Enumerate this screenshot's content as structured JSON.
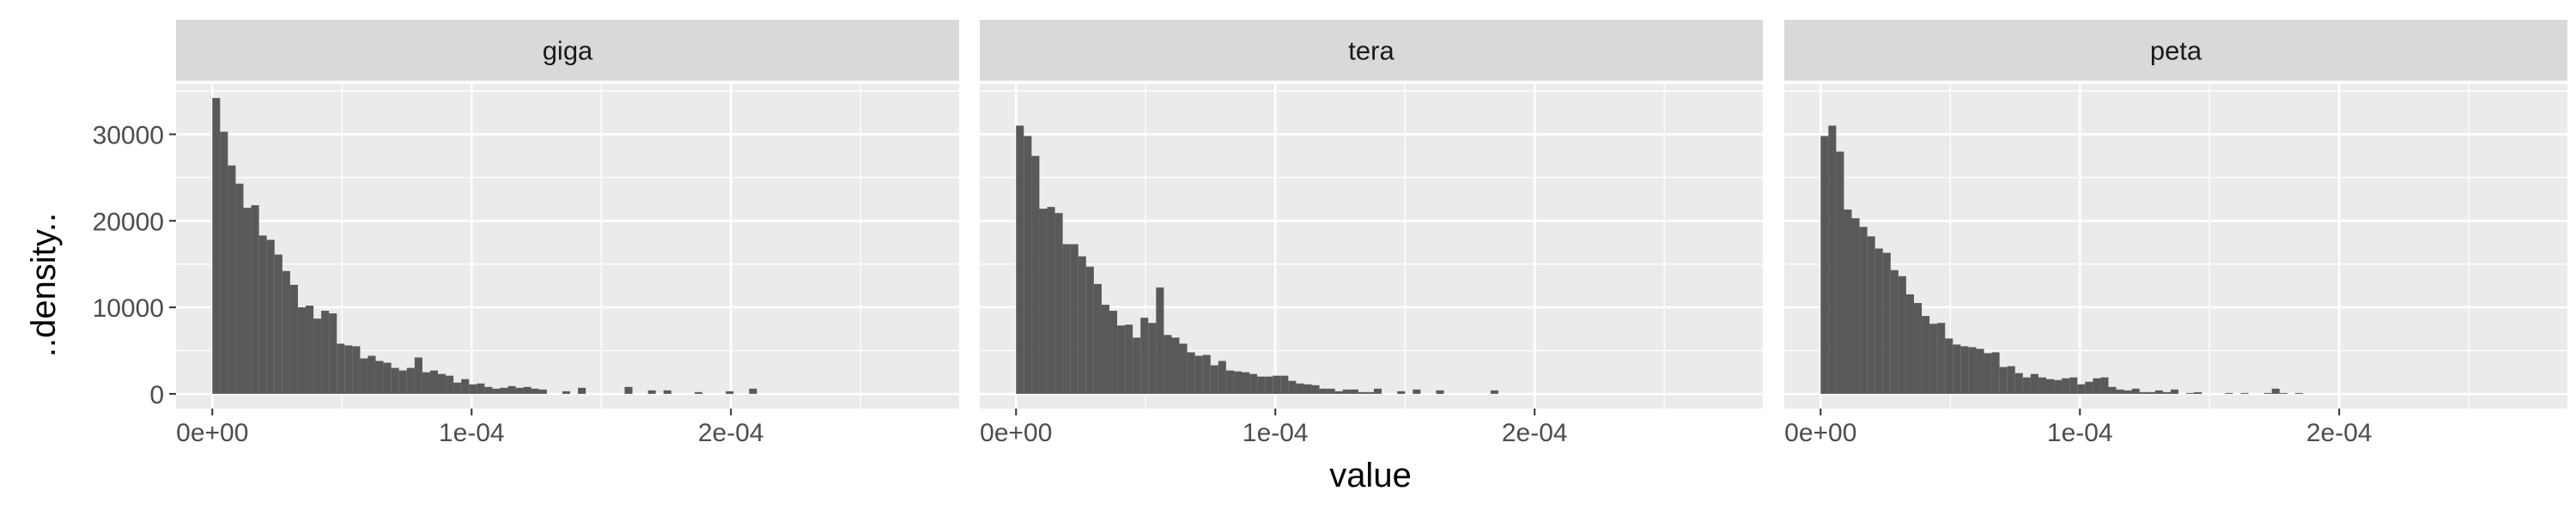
{
  "chart_data": {
    "type": "bar",
    "subtype": "faceted-histogram",
    "xlabel": "value",
    "ylabel": "..density..",
    "xlim": [
      -1.4e-05,
      0.000288
    ],
    "ylim": [
      -1700,
      35800
    ],
    "x_ticks": [
      0,
      0.0001,
      0.0002
    ],
    "x_tick_labels": [
      "0e+00",
      "1e-04",
      "2e-04"
    ],
    "y_ticks": [
      0,
      10000,
      20000,
      30000
    ],
    "y_tick_labels": [
      "0",
      "10000",
      "20000",
      "30000"
    ],
    "bin_width": 3e-06,
    "bin_start": 0,
    "grid": true,
    "bar_color": "#595959",
    "panel_background": "#ebebeb",
    "strip_background": "#d9d9d9",
    "grid_color": "#ffffff",
    "facets": [
      {
        "label": "giga",
        "values": [
          34200,
          30300,
          26400,
          24300,
          21500,
          21800,
          18300,
          17800,
          16100,
          14200,
          12600,
          10000,
          10200,
          8700,
          9600,
          9300,
          5800,
          5600,
          5500,
          4100,
          4400,
          3800,
          3600,
          3000,
          2700,
          3000,
          4200,
          2500,
          2700,
          2300,
          2100,
          1300,
          1700,
          1100,
          1200,
          800,
          600,
          700,
          900,
          700,
          800,
          600,
          500,
          0,
          0,
          300,
          0,
          700,
          0,
          0,
          0,
          0,
          0,
          800,
          0,
          0,
          400,
          0,
          400,
          0,
          0,
          0,
          200,
          0,
          0,
          0,
          300,
          0,
          0,
          600,
          0,
          0,
          0,
          0,
          0,
          0,
          0,
          0,
          0,
          0,
          0,
          0,
          0,
          0,
          0,
          0,
          0,
          0,
          0,
          0,
          0,
          0,
          0
        ]
      },
      {
        "label": "tera",
        "values": [
          31000,
          29800,
          27500,
          21400,
          21600,
          20900,
          17300,
          17300,
          15900,
          14700,
          12700,
          10300,
          9600,
          7900,
          8000,
          6500,
          8800,
          8200,
          12300,
          6800,
          6500,
          5800,
          4800,
          4400,
          4500,
          3300,
          3800,
          2700,
          2600,
          2500,
          2300,
          2000,
          2000,
          2100,
          2100,
          1500,
          1200,
          1100,
          1000,
          600,
          600,
          300,
          500,
          500,
          200,
          200,
          600,
          0,
          0,
          300,
          0,
          500,
          0,
          0,
          400,
          0,
          0,
          0,
          0,
          0,
          0,
          400,
          0,
          0,
          0,
          0,
          0,
          0,
          0,
          0,
          0,
          0,
          0,
          0,
          0,
          0,
          0,
          0,
          0,
          0,
          0,
          0,
          0,
          0,
          0,
          0,
          0,
          0,
          0,
          0,
          0,
          0,
          0
        ]
      },
      {
        "label": "peta",
        "values": [
          29800,
          31000,
          28000,
          21300,
          20300,
          19300,
          18200,
          16800,
          16300,
          14300,
          13600,
          11500,
          10500,
          9000,
          8100,
          8200,
          6400,
          5700,
          5500,
          5400,
          5200,
          4700,
          4800,
          3100,
          3200,
          2400,
          1900,
          2300,
          1900,
          1700,
          1600,
          1800,
          1900,
          1100,
          1400,
          1800,
          1900,
          800,
          500,
          400,
          600,
          200,
          200,
          400,
          200,
          500,
          0,
          100,
          200,
          0,
          0,
          0,
          100,
          0,
          100,
          0,
          0,
          100,
          600,
          100,
          0,
          100,
          0,
          0,
          0,
          0,
          0,
          0,
          0,
          0,
          0,
          0,
          0,
          0,
          0,
          0,
          0,
          0,
          0,
          0,
          0,
          0,
          0,
          0,
          0,
          0,
          0,
          0,
          0,
          0,
          0,
          0,
          0
        ]
      }
    ]
  }
}
